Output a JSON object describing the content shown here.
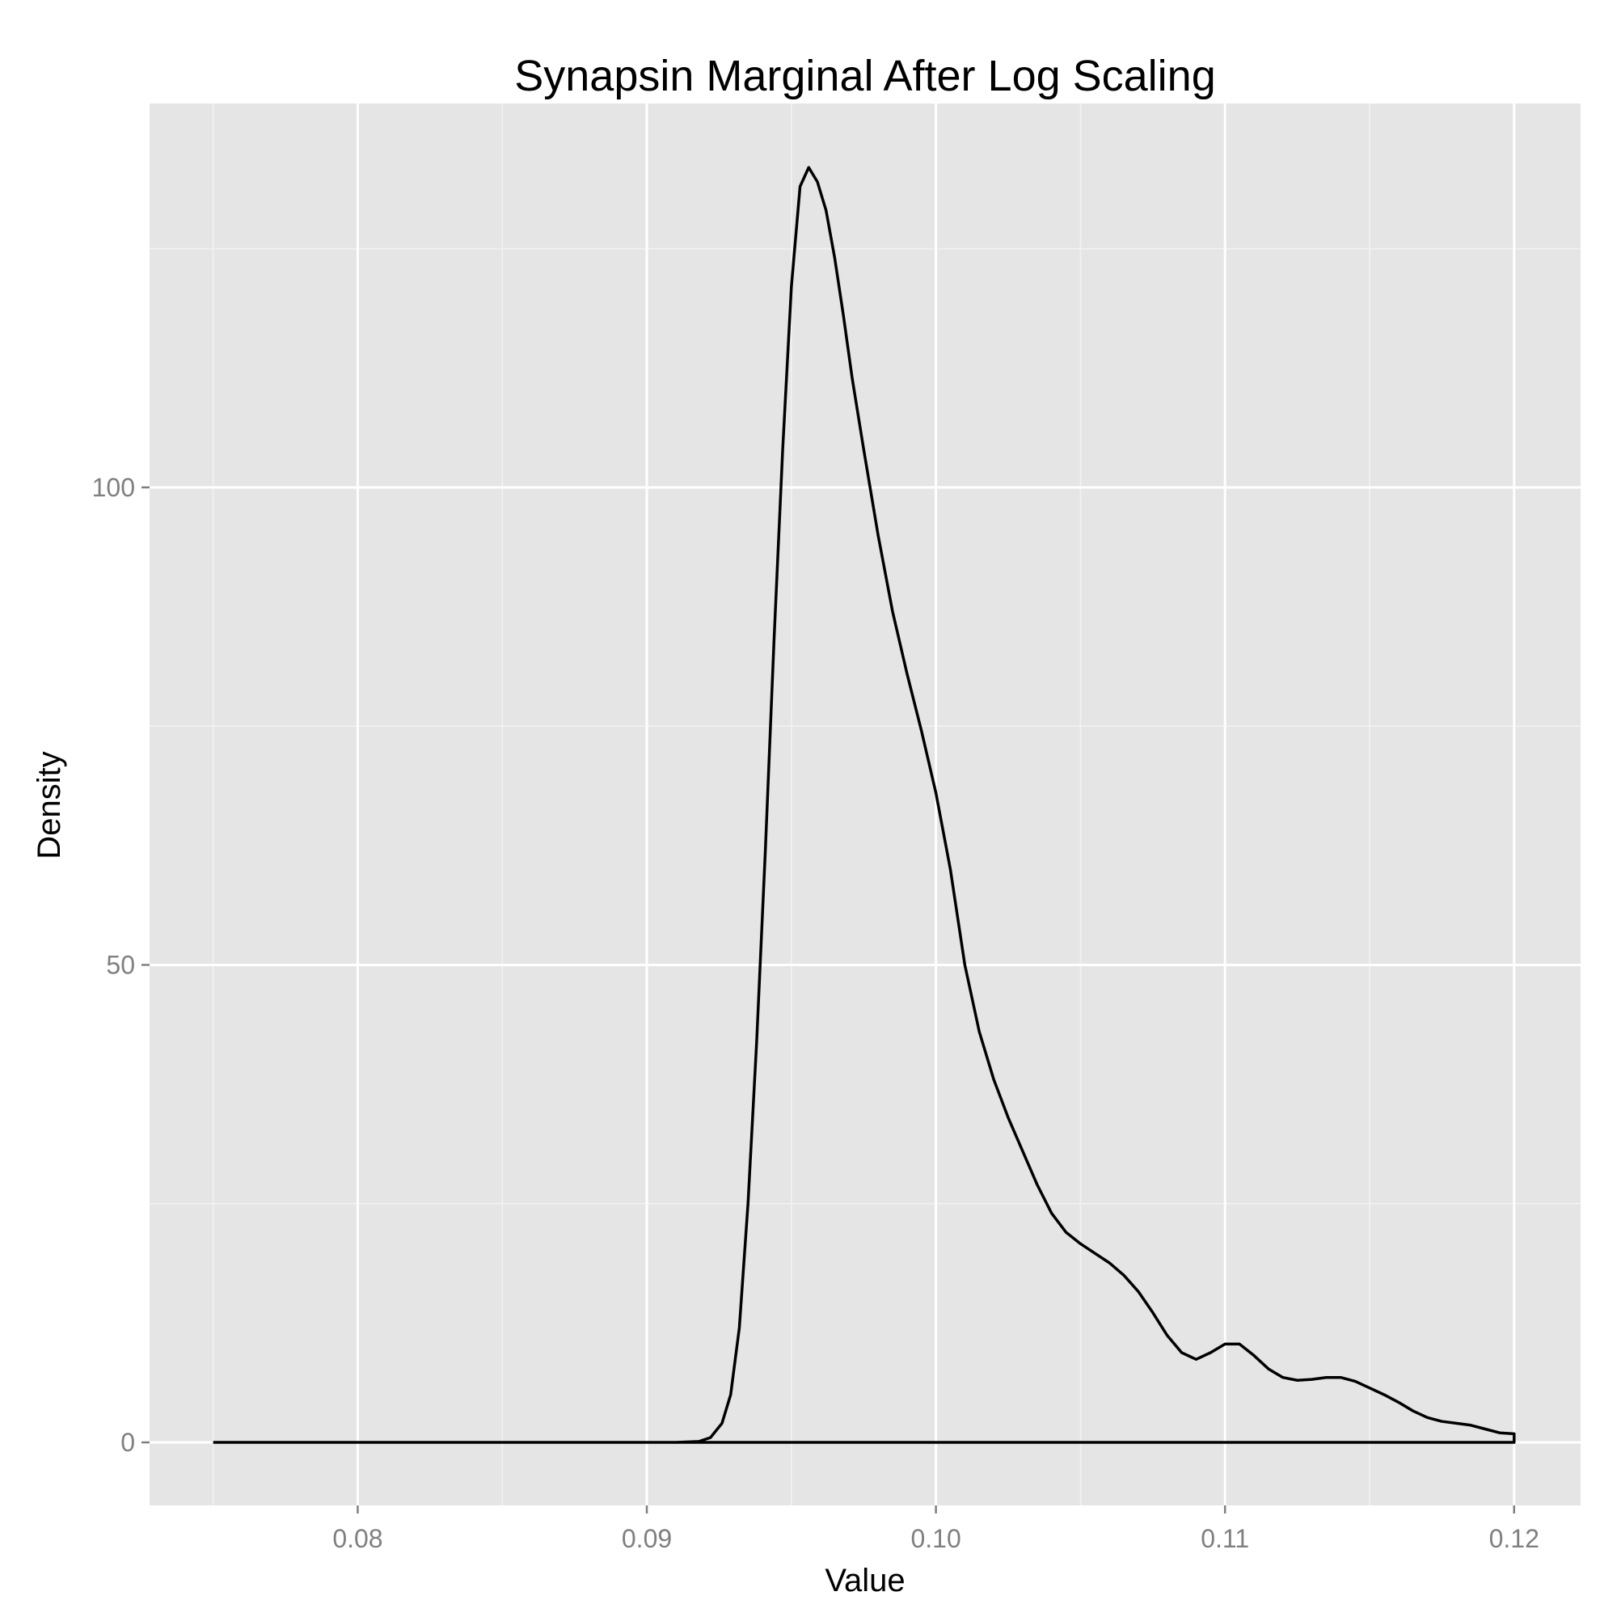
{
  "chart_data": {
    "type": "line",
    "title": "Synapsin Marginal After Log Scaling",
    "xlabel": "Value",
    "ylabel": "Density",
    "xlim": [
      0.0728,
      0.1223
    ],
    "ylim": [
      -6.6,
      140.2
    ],
    "x_ticks": [
      0.08,
      0.09,
      0.1,
      0.11,
      0.12
    ],
    "x_tick_labels": [
      "0.08",
      "0.09",
      "0.10",
      "0.11",
      "0.12"
    ],
    "y_ticks": [
      0,
      50,
      100
    ],
    "y_tick_labels": [
      "0",
      "50",
      "100"
    ],
    "grid": true,
    "panel_color": "#e5e5e5",
    "grid_color": "#ffffff",
    "line_color": "#000000",
    "series": [
      {
        "x": [
          0.075,
          0.08,
          0.09,
          0.091,
          0.0918,
          0.0922,
          0.0926,
          0.0929,
          0.0932,
          0.0935,
          0.0938,
          0.0941,
          0.0944,
          0.0947,
          0.095,
          0.0953,
          0.0956,
          0.0959,
          0.0962,
          0.0965,
          0.0968,
          0.0971,
          0.0975,
          0.098,
          0.0985,
          0.099,
          0.0995,
          0.1,
          0.1005,
          0.101,
          0.1015,
          0.102,
          0.1025,
          0.103,
          0.1035,
          0.104,
          0.1045,
          0.105,
          0.1055,
          0.106,
          0.1065,
          0.107,
          0.1075,
          0.108,
          0.1085,
          0.109,
          0.1095,
          0.11,
          0.1105,
          0.111,
          0.1115,
          0.112,
          0.1125,
          0.113,
          0.1135,
          0.114,
          0.1145,
          0.115,
          0.1155,
          0.116,
          0.1165,
          0.117,
          0.1175,
          0.118,
          0.1185,
          0.119,
          0.1195,
          0.12,
          0.12
        ],
        "y": [
          0,
          0,
          0,
          0,
          0.1,
          0.5,
          2.0,
          5.0,
          12.0,
          25.0,
          42.0,
          62.0,
          84.0,
          104.0,
          121.0,
          131.5,
          133.5,
          132.0,
          129.0,
          124.0,
          118.0,
          111.5,
          104.0,
          95.0,
          87.0,
          80.5,
          74.5,
          68.0,
          60.0,
          50.0,
          43.0,
          38.0,
          34.0,
          30.5,
          27.0,
          24.0,
          22.0,
          20.8,
          19.8,
          18.8,
          17.5,
          15.8,
          13.6,
          11.2,
          9.4,
          8.7,
          9.4,
          10.3,
          10.3,
          9.1,
          7.7,
          6.8,
          6.5,
          6.6,
          6.8,
          6.8,
          6.4,
          5.7,
          5.0,
          4.2,
          3.3,
          2.6,
          2.2,
          2.0,
          1.8,
          1.4,
          1.0,
          0.9,
          0
        ]
      }
    ]
  }
}
